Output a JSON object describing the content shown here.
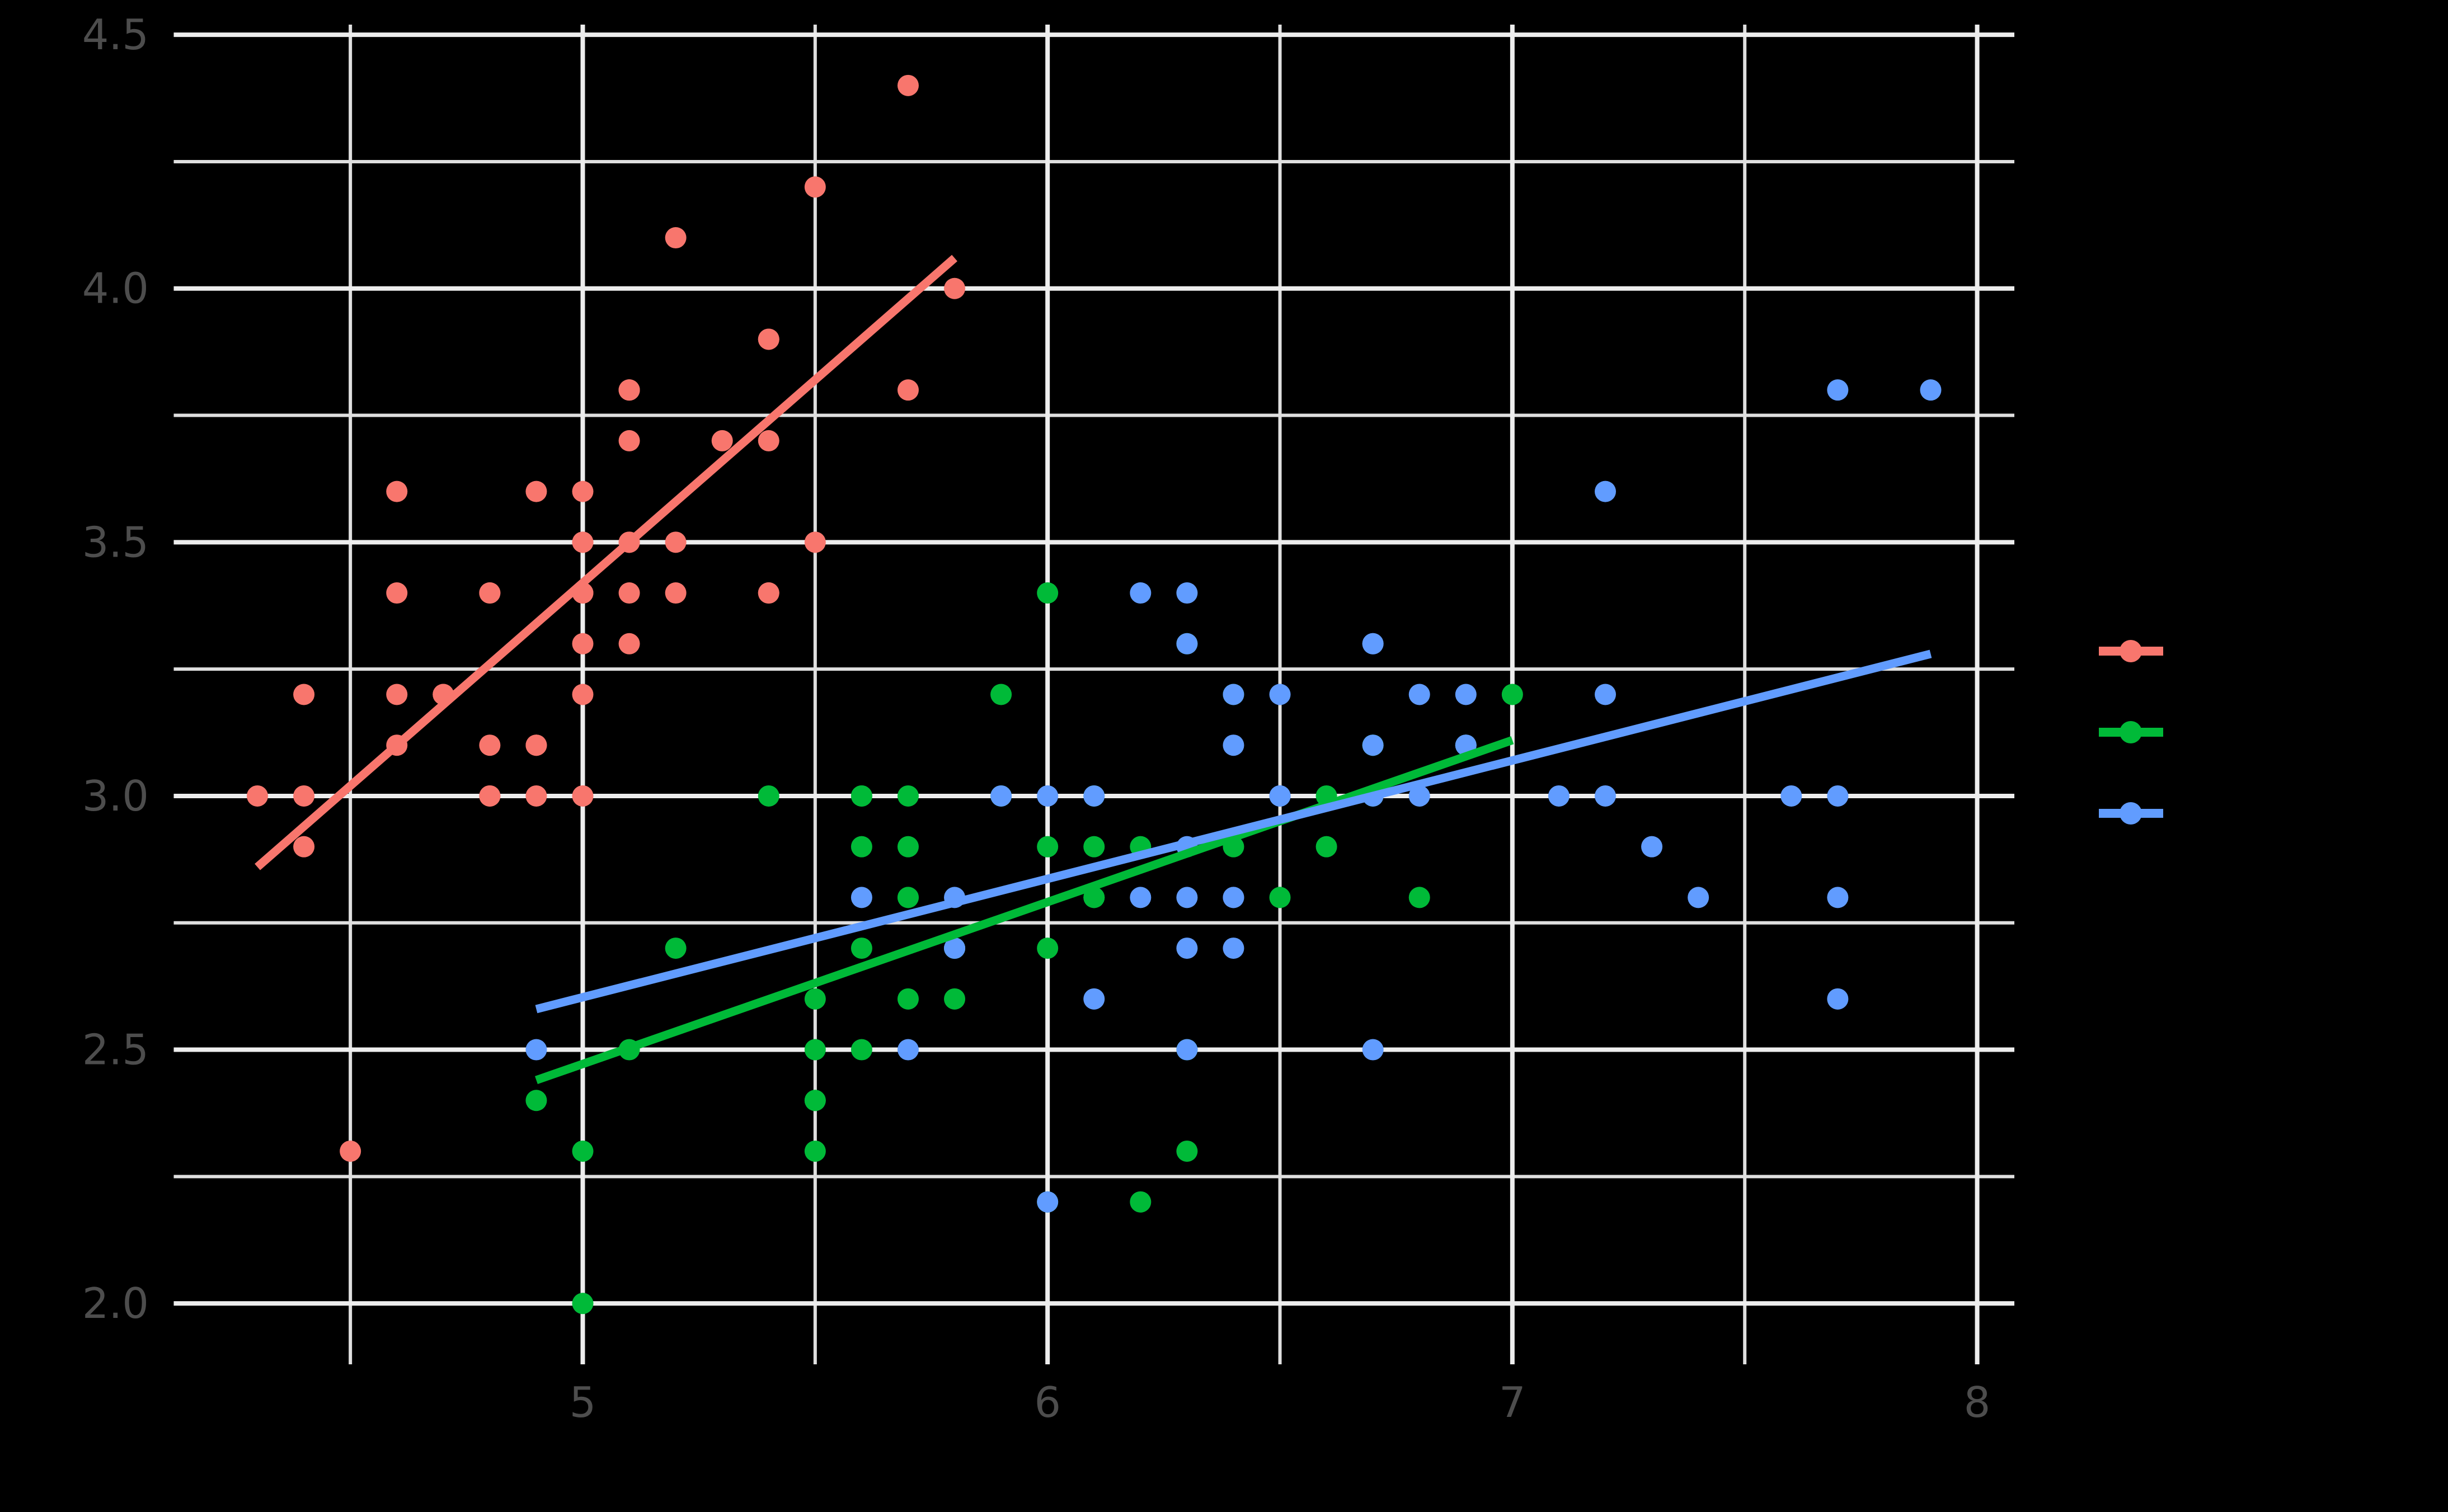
{
  "figure": {
    "background_color": "#000000",
    "grid_major_color": "#EDEDED",
    "grid_minor_color": "#DFDFDF",
    "axis_text_color": "#4D4D4D"
  },
  "chart_data": {
    "type": "scatter",
    "title": "",
    "xlabel": "",
    "ylabel": "",
    "x_range": [
      4.12,
      8.08
    ],
    "y_range": [
      1.88,
      4.52
    ],
    "grid": "on",
    "legend_position": "right",
    "x_ticks": [
      {
        "v": 5,
        "label": "5"
      },
      {
        "v": 6,
        "label": "6"
      },
      {
        "v": 7,
        "label": "7"
      },
      {
        "v": 8,
        "label": "8"
      }
    ],
    "y_ticks": [
      {
        "v": 2.0,
        "label": "2.0"
      },
      {
        "v": 2.5,
        "label": "2.5"
      },
      {
        "v": 3.0,
        "label": "3.0"
      },
      {
        "v": 3.5,
        "label": "3.5"
      },
      {
        "v": 4.0,
        "label": "4.0"
      },
      {
        "v": 4.5,
        "label": "4.5"
      }
    ],
    "x_minor": [
      4.5,
      5.5,
      6.5,
      7.5
    ],
    "y_minor": [
      2.25,
      2.75,
      3.25,
      3.75,
      4.25
    ],
    "series": [
      {
        "name": "series-red",
        "color": "#F8766D",
        "trend": {
          "x1": 4.3,
          "y1": 2.86,
          "x2": 5.8,
          "y2": 4.06
        },
        "points": [
          [
            5.1,
            3.5
          ],
          [
            4.9,
            3.0
          ],
          [
            4.7,
            3.2
          ],
          [
            4.6,
            3.1
          ],
          [
            5.0,
            3.6
          ],
          [
            5.4,
            3.9
          ],
          [
            4.6,
            3.4
          ],
          [
            5.0,
            3.4
          ],
          [
            4.4,
            2.9
          ],
          [
            4.9,
            3.1
          ],
          [
            5.4,
            3.7
          ],
          [
            4.8,
            3.4
          ],
          [
            4.8,
            3.0
          ],
          [
            4.3,
            3.0
          ],
          [
            5.8,
            4.0
          ],
          [
            5.7,
            4.4
          ],
          [
            5.4,
            3.9
          ],
          [
            5.1,
            3.5
          ],
          [
            5.7,
            3.8
          ],
          [
            5.1,
            3.8
          ],
          [
            5.4,
            3.4
          ],
          [
            5.1,
            3.7
          ],
          [
            4.6,
            3.6
          ],
          [
            5.1,
            3.3
          ],
          [
            4.8,
            3.4
          ],
          [
            5.0,
            3.0
          ],
          [
            5.0,
            3.4
          ],
          [
            5.2,
            3.5
          ],
          [
            5.2,
            3.4
          ],
          [
            4.7,
            3.2
          ],
          [
            4.8,
            3.1
          ],
          [
            5.4,
            3.4
          ],
          [
            5.2,
            4.1
          ],
          [
            5.5,
            4.2
          ],
          [
            4.9,
            3.1
          ],
          [
            5.0,
            3.2
          ],
          [
            5.5,
            3.5
          ],
          [
            4.9,
            3.6
          ],
          [
            4.4,
            3.0
          ],
          [
            5.1,
            3.4
          ],
          [
            5.0,
            3.5
          ],
          [
            4.5,
            2.3
          ],
          [
            4.4,
            3.2
          ],
          [
            5.0,
            3.5
          ],
          [
            5.1,
            3.8
          ],
          [
            4.8,
            3.0
          ],
          [
            5.1,
            3.8
          ],
          [
            4.6,
            3.2
          ],
          [
            5.3,
            3.7
          ],
          [
            5.0,
            3.3
          ]
        ]
      },
      {
        "name": "series-green",
        "color": "#00BA38",
        "trend": {
          "x1": 4.9,
          "y1": 2.44,
          "x2": 7.0,
          "y2": 3.11
        },
        "points": [
          [
            7.0,
            3.2
          ],
          [
            6.4,
            3.2
          ],
          [
            6.9,
            3.1
          ],
          [
            5.5,
            2.3
          ],
          [
            6.5,
            2.8
          ],
          [
            5.7,
            2.8
          ],
          [
            6.3,
            3.3
          ],
          [
            4.9,
            2.4
          ],
          [
            6.6,
            2.9
          ],
          [
            5.2,
            2.7
          ],
          [
            5.0,
            2.0
          ],
          [
            5.9,
            3.0
          ],
          [
            6.0,
            2.2
          ],
          [
            6.1,
            2.9
          ],
          [
            5.6,
            2.9
          ],
          [
            6.7,
            3.1
          ],
          [
            5.6,
            3.0
          ],
          [
            5.8,
            2.7
          ],
          [
            6.2,
            2.2
          ],
          [
            5.6,
            2.5
          ],
          [
            5.9,
            3.2
          ],
          [
            6.1,
            2.8
          ],
          [
            6.3,
            2.5
          ],
          [
            6.1,
            2.8
          ],
          [
            6.4,
            2.9
          ],
          [
            6.6,
            3.0
          ],
          [
            6.8,
            2.8
          ],
          [
            6.7,
            3.0
          ],
          [
            6.0,
            2.9
          ],
          [
            5.7,
            2.6
          ],
          [
            5.5,
            2.4
          ],
          [
            5.5,
            2.4
          ],
          [
            5.8,
            2.7
          ],
          [
            6.0,
            2.7
          ],
          [
            5.4,
            3.0
          ],
          [
            6.0,
            3.4
          ],
          [
            6.7,
            3.1
          ],
          [
            6.3,
            2.3
          ],
          [
            5.6,
            3.0
          ],
          [
            5.5,
            2.5
          ],
          [
            5.5,
            2.6
          ],
          [
            6.1,
            3.0
          ],
          [
            5.8,
            2.6
          ],
          [
            5.0,
            2.3
          ],
          [
            5.6,
            2.7
          ],
          [
            5.7,
            3.0
          ],
          [
            5.7,
            2.9
          ],
          [
            6.2,
            2.9
          ],
          [
            5.1,
            2.5
          ],
          [
            5.7,
            2.8
          ]
        ]
      },
      {
        "name": "series-blue",
        "color": "#619CFF",
        "trend": {
          "x1": 4.9,
          "y1": 2.58,
          "x2": 7.9,
          "y2": 3.28
        },
        "points": [
          [
            6.3,
            3.3
          ],
          [
            5.8,
            2.7
          ],
          [
            7.1,
            3.0
          ],
          [
            6.3,
            2.9
          ],
          [
            6.5,
            3.0
          ],
          [
            7.6,
            3.0
          ],
          [
            4.9,
            2.5
          ],
          [
            7.3,
            2.9
          ],
          [
            6.7,
            2.5
          ],
          [
            7.2,
            3.6
          ],
          [
            6.5,
            3.2
          ],
          [
            6.4,
            2.7
          ],
          [
            6.8,
            3.0
          ],
          [
            5.7,
            2.5
          ],
          [
            5.8,
            2.8
          ],
          [
            6.4,
            3.2
          ],
          [
            6.5,
            3.0
          ],
          [
            7.7,
            3.8
          ],
          [
            7.7,
            2.6
          ],
          [
            6.0,
            2.2
          ],
          [
            6.9,
            3.2
          ],
          [
            5.6,
            2.8
          ],
          [
            7.7,
            2.8
          ],
          [
            6.3,
            2.7
          ],
          [
            6.7,
            3.3
          ],
          [
            7.2,
            3.2
          ],
          [
            6.2,
            2.8
          ],
          [
            6.1,
            3.0
          ],
          [
            6.4,
            2.8
          ],
          [
            7.2,
            3.0
          ],
          [
            7.4,
            2.8
          ],
          [
            7.9,
            3.8
          ],
          [
            6.4,
            2.8
          ],
          [
            6.3,
            2.8
          ],
          [
            6.1,
            2.6
          ],
          [
            7.7,
            3.0
          ],
          [
            6.3,
            3.4
          ],
          [
            6.4,
            3.1
          ],
          [
            6.0,
            3.0
          ],
          [
            6.9,
            3.1
          ],
          [
            6.7,
            3.1
          ],
          [
            6.9,
            3.1
          ],
          [
            5.8,
            2.7
          ],
          [
            6.8,
            3.2
          ],
          [
            6.7,
            3.3
          ],
          [
            6.7,
            3.0
          ],
          [
            6.3,
            2.5
          ],
          [
            6.5,
            3.0
          ],
          [
            6.2,
            3.4
          ],
          [
            5.9,
            3.0
          ]
        ]
      }
    ],
    "legend": {
      "items": [
        {
          "series": "series-red",
          "color": "#F8766D",
          "label": ""
        },
        {
          "series": "series-green",
          "color": "#00BA38",
          "label": ""
        },
        {
          "series": "series-blue",
          "color": "#619CFF",
          "label": ""
        }
      ]
    }
  }
}
